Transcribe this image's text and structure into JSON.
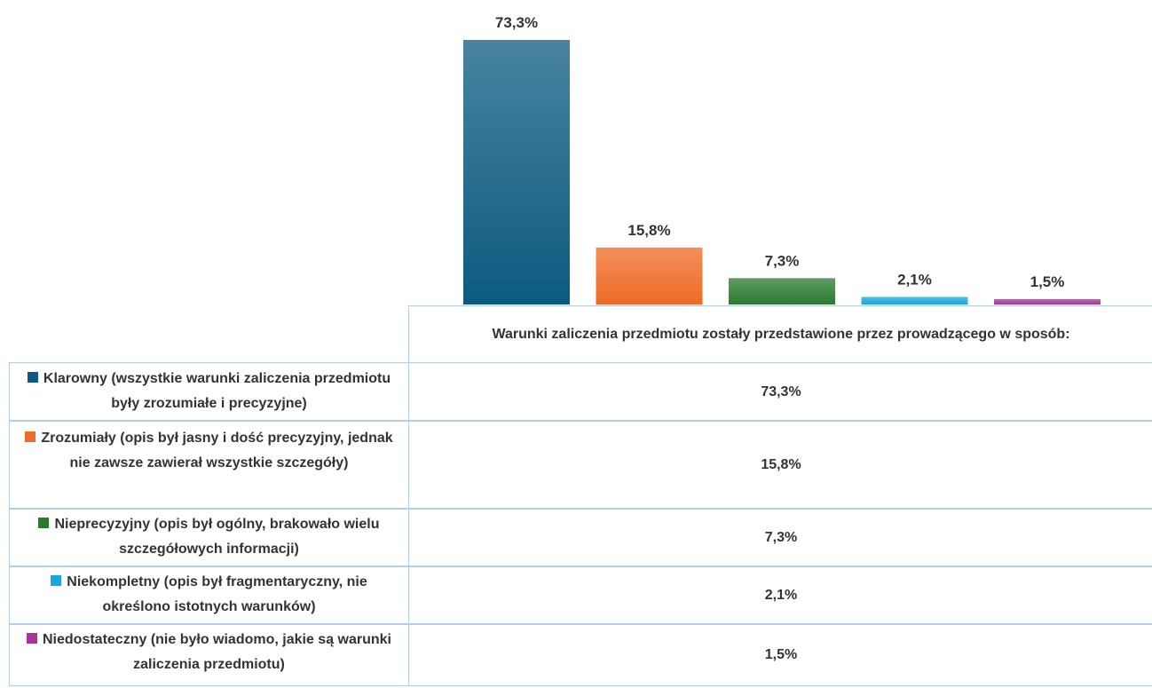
{
  "chart_data": {
    "type": "bar",
    "categories": [
      "Warunki zaliczenia przedmiotu zostały przedstawione przez prowadzącego w sposób:"
    ],
    "series": [
      {
        "name": "Klarowny (wszystkie warunki zaliczenia przedmiotu były zrozumiałe i precyzyjne)",
        "color": "#0c5a80",
        "values": [
          73.3
        ],
        "value_labels": [
          "73,3%"
        ]
      },
      {
        "name": "Zrozumiały (opis był jasny i dość precyzyjny, jednak nie zawsze zawierał wszystkie szczegóły)",
        "color": "#ee6a26",
        "values": [
          15.8
        ],
        "value_labels": [
          "15,8%"
        ]
      },
      {
        "name": "Nieprecyzyjny (opis był ogólny, brakowało wielu szczegółowych informacji)",
        "color": "#2a7a2e",
        "values": [
          7.3
        ],
        "value_labels": [
          "7,3%"
        ]
      },
      {
        "name": "Niekompletny (opis był fragmentaryczny, nie określono istotnych warunków)",
        "color": "#1aa6e0",
        "values": [
          2.1
        ],
        "value_labels": [
          "2,1%"
        ]
      },
      {
        "name": "Niedostateczny (nie było wiadomo, jakie są warunki zaliczenia przedmiotu)",
        "color": "#a8349e",
        "values": [
          1.5
        ],
        "value_labels": [
          "1,5%"
        ]
      }
    ]
  }
}
